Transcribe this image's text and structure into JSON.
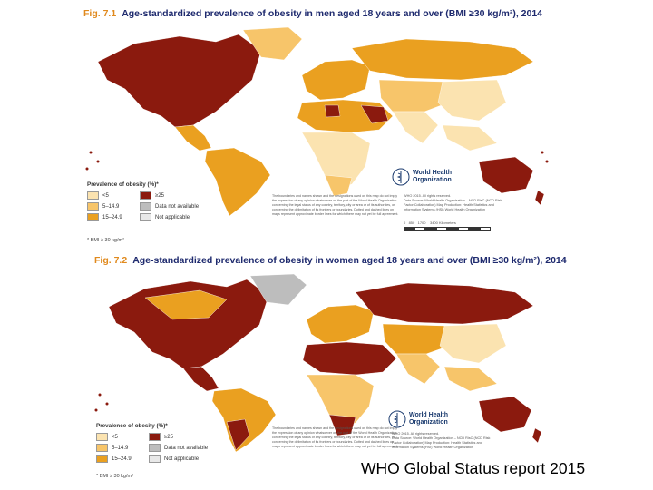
{
  "figure1": {
    "number": "Fig. 7.1",
    "title": "Age-standardized prevalence of obesity in men aged 18 years and over (BMI ≥30 kg/m²), 2014",
    "legend_title": "Prevalence of obesity (%)*",
    "footnote": "* BMI ≥ 30 kg/m²",
    "copyright": "WHO 2015. All rights reserved.",
    "source": "Data Source: World Health Organization – NCD RisC (NCD Risk Factor Collaboration) Map Production: Health Statistics and Information Systems (HSI) World Health Organization",
    "disclaimer": "The boundaries and names shown and the designations used on this map do not imply the expression of any opinion whatsoever on the part of the World Health Organization concerning the legal status of any country, territory, city or area or of its authorities, or concerning the delimitation of its frontiers or boundaries. Dotted and dashed lines on maps represent approximate border lines for which there may not yet be full agreement.",
    "scale_labels": [
      "0",
      "850",
      "1700",
      "3400 Kilometers"
    ]
  },
  "figure2": {
    "number": "Fig. 7.2",
    "title": "Age-standardized prevalence of obesity in women aged 18 years and over (BMI ≥30 kg/m²), 2014",
    "legend_title": "Prevalence of obesity (%)*",
    "footnote": "* BMI ≥ 30 kg/m²",
    "copyright": "WHO 2015. All rights reserved.",
    "source": "Data Source: World Health Organization – NCD RisC (NCD Risk Factor Collaboration) Map Production: Health Statistics and Information Systems (HSI) World Health Organization",
    "disclaimer": "The boundaries and names shown and the designations used on this map do not imply the expression of any opinion whatsoever on the part of the World Health Organization concerning the legal status of any country, territory, city or area or of its authorities, or concerning the delimitation of its frontiers or boundaries. Dotted and dashed lines on maps represent approximate border lines for which there may not yet be full agreement."
  },
  "legend": [
    {
      "label": "<5",
      "color": "#fbe3b0"
    },
    {
      "label": "≥25",
      "color": "#8b1a0e"
    },
    {
      "label": "5–14.9",
      "color": "#f7c56a"
    },
    {
      "label": "Data not available",
      "color": "#bdbdbd"
    },
    {
      "label": "15–24.9",
      "color": "#eaa020"
    },
    {
      "label": "Not applicable",
      "color": "#e8e8e8"
    }
  ],
  "who_logo": {
    "line1": "World Health",
    "line2": "Organization"
  },
  "caption": "WHO Global Status report 2015",
  "colors": {
    "lt5": "#fbe3b0",
    "c5_15": "#f7c56a",
    "c15_25": "#eaa020",
    "ge25": "#8b1a0e",
    "na": "#bdbdbd",
    "ocean": "#ffffff"
  }
}
